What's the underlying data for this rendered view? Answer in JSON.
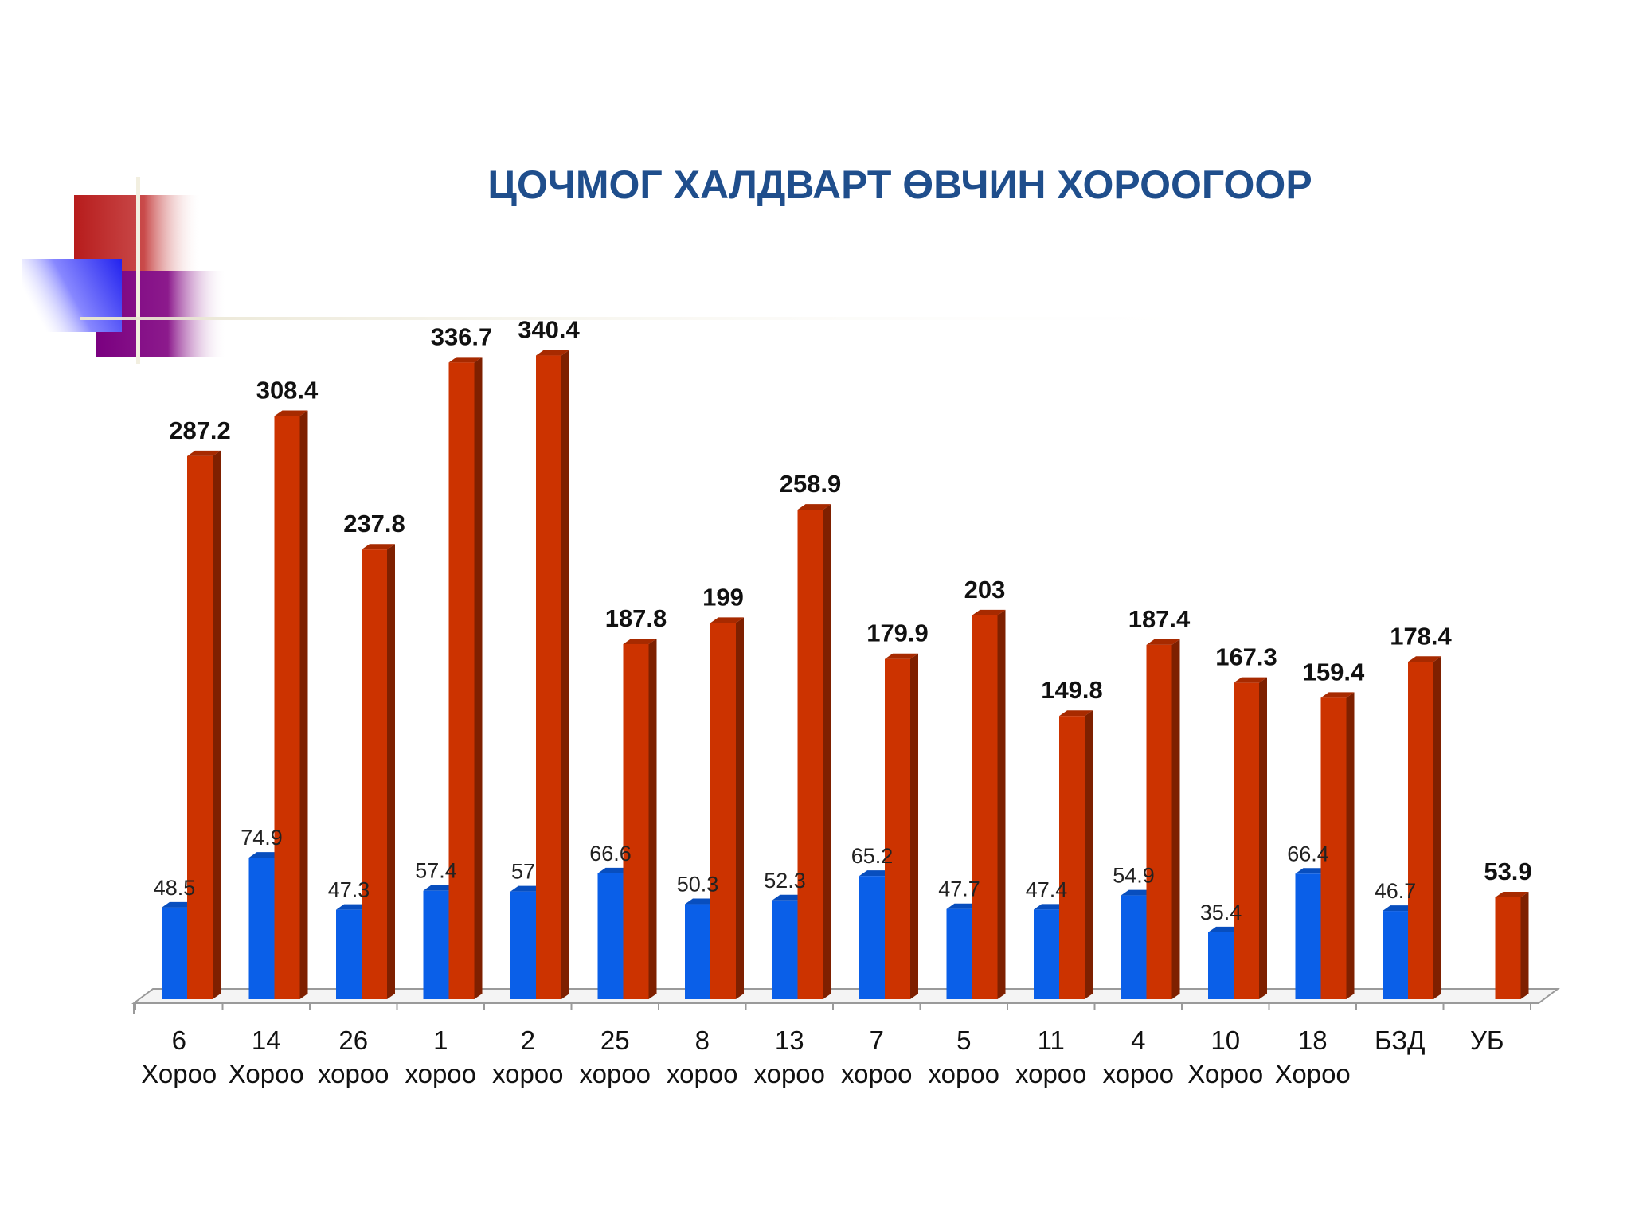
{
  "title": "ЦОЧМОГ ХАЛДВАРТ ӨВЧИН ХОРООГООР",
  "colors": {
    "title": "#1f4e8c",
    "series_blue": "#0a5fe8",
    "series_red": "#cc3300"
  },
  "chart_data": {
    "type": "bar",
    "title": "ЦОЧМОГ ХАЛДВАРТ ӨВЧИН ХОРООГООР",
    "categories": [
      [
        "6",
        "Хороо"
      ],
      [
        "14",
        "Хороо"
      ],
      [
        "26",
        "хороо"
      ],
      [
        "1",
        "хороо"
      ],
      [
        "2",
        "хороо"
      ],
      [
        "25",
        "хороо"
      ],
      [
        "8",
        "хороо"
      ],
      [
        "13",
        "хороо"
      ],
      [
        "7",
        "хороо"
      ],
      [
        "5",
        "хороо"
      ],
      [
        "11",
        "хороо"
      ],
      [
        "4",
        "хороо"
      ],
      [
        "10",
        "Хороо"
      ],
      [
        "18",
        "Хороо"
      ],
      [
        "БЗД",
        ""
      ],
      [
        "УБ",
        ""
      ]
    ],
    "series": [
      {
        "color": "#0a5fe8",
        "values": [
          48.5,
          74.9,
          47.3,
          57.4,
          57,
          66.6,
          50.3,
          52.3,
          65.2,
          47.7,
          47.4,
          54.9,
          35.4,
          66.4,
          46.7,
          null
        ],
        "labels": [
          "48.5",
          "74.9",
          "47.3",
          "57.4",
          "57",
          "66.6",
          "50.3",
          "52.3",
          "65.2",
          "47.7",
          "47.4",
          "54.9",
          "35.4",
          "66.4",
          "46.7",
          ""
        ]
      },
      {
        "color": "#cc3300",
        "values": [
          287.2,
          308.4,
          237.8,
          336.7,
          340.4,
          187.8,
          199,
          258.9,
          179.9,
          203,
          149.8,
          187.4,
          167.3,
          159.4,
          178.4,
          53.9
        ],
        "labels": [
          "287.2",
          "308.4",
          "237.8",
          "336.7",
          "340.4",
          "187.8",
          "199",
          "258.9",
          "179.9",
          "203",
          "149.8",
          "187.4",
          "167.3",
          "159.4",
          "178.4",
          "53.9"
        ]
      }
    ],
    "xlabel": "",
    "ylabel": "",
    "grid": false,
    "legend": "none"
  }
}
